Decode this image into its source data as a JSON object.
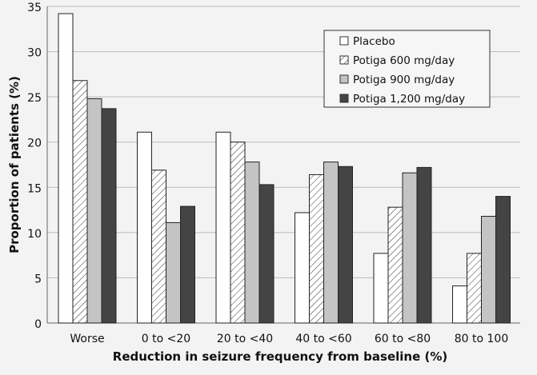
{
  "chart_data": {
    "type": "bar",
    "title": "",
    "xlabel": "Reduction in seizure frequency from baseline (%)",
    "ylabel": "Proportion of patients (%)",
    "ylim": [
      0,
      35
    ],
    "yticks": [
      "0",
      "5",
      "10",
      "15",
      "20",
      "25",
      "30",
      "35"
    ],
    "grid": true,
    "legend_position": "top-right",
    "categories": [
      "Worse",
      "0 to <20",
      "20 to <40",
      "40 to <60",
      "60 to <80",
      "80 to 100"
    ],
    "series": [
      {
        "name": "Placebo",
        "fill": "#ffffff",
        "pattern": "none",
        "values": [
          34.2,
          21.1,
          21.1,
          12.2,
          7.7,
          4.1
        ]
      },
      {
        "name": "Potiga 600 mg/day",
        "fill": "#ffffff",
        "pattern": "hatch",
        "values": [
          26.8,
          16.9,
          20.0,
          16.4,
          12.8,
          7.7
        ]
      },
      {
        "name": "Potiga 900 mg/day",
        "fill": "#c4c4c4",
        "pattern": "none",
        "values": [
          24.8,
          11.1,
          17.8,
          17.8,
          16.6,
          11.8
        ]
      },
      {
        "name": "Potiga 1,200 mg/day",
        "fill": "#444444",
        "pattern": "none",
        "values": [
          23.7,
          12.9,
          15.3,
          17.3,
          17.2,
          14.0
        ]
      }
    ]
  }
}
